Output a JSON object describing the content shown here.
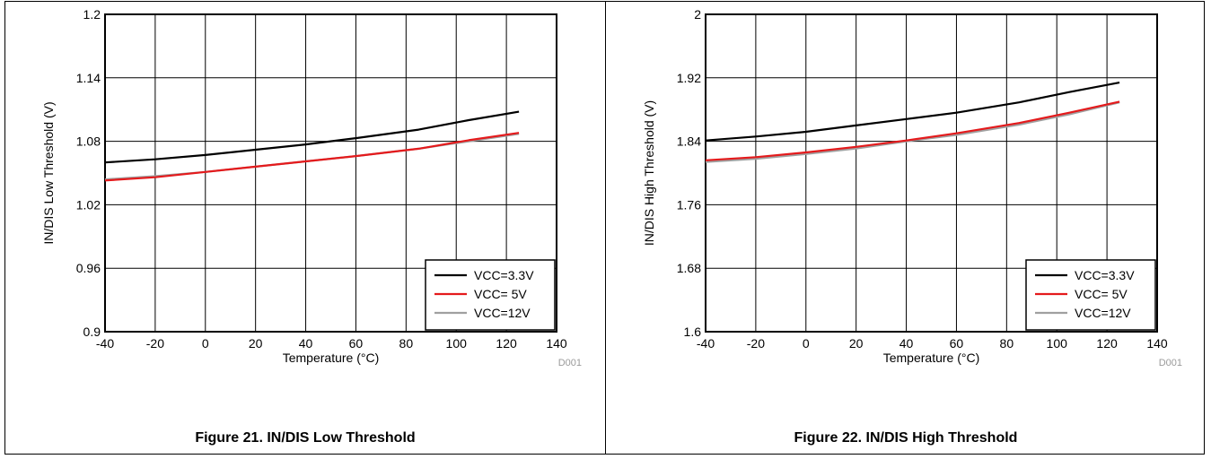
{
  "figures": [
    {
      "caption": "Figure 21. IN/DIS Low Threshold",
      "code": "D001"
    },
    {
      "caption": "Figure 22. IN/DIS High Threshold",
      "code": "D001"
    }
  ],
  "chart_data": [
    {
      "type": "line",
      "xlabel": "Temperature (°C)",
      "ylabel": "IN/DIS Low Threshold (V)",
      "xlim": [
        -40,
        140
      ],
      "ylim": [
        0.9,
        1.2
      ],
      "xticks": [
        -40,
        -20,
        0,
        20,
        40,
        60,
        80,
        100,
        120,
        140
      ],
      "yticks": [
        0.9,
        0.96,
        1.02,
        1.08,
        1.14,
        1.2
      ],
      "ytick_labels": [
        "0.9",
        "0.96",
        "1.02",
        "1.08",
        "1.14",
        "1.2"
      ],
      "grid": true,
      "legend": "bottom-right",
      "x": [
        -40,
        -20,
        0,
        20,
        40,
        60,
        85,
        105,
        125
      ],
      "series": [
        {
          "name": "VCC=3.3V",
          "color": "#000000",
          "values": [
            1.06,
            1.063,
            1.067,
            1.072,
            1.077,
            1.083,
            1.091,
            1.1,
            1.108
          ]
        },
        {
          "name": "VCC= 5V",
          "color": "#e41a1c",
          "values": [
            1.043,
            1.046,
            1.051,
            1.056,
            1.061,
            1.066,
            1.073,
            1.081,
            1.088
          ]
        },
        {
          "name": "VCC=12V",
          "color": "#a0a0a0",
          "values": [
            1.044,
            1.047,
            1.051,
            1.056,
            1.061,
            1.066,
            1.073,
            1.08,
            1.087
          ]
        }
      ]
    },
    {
      "type": "line",
      "xlabel": "Temperature (°C)",
      "ylabel": "IN/DIS High Threshold (V)",
      "xlim": [
        -40,
        140
      ],
      "ylim": [
        1.6,
        2.0
      ],
      "xticks": [
        -40,
        -20,
        0,
        20,
        40,
        60,
        80,
        100,
        120,
        140
      ],
      "yticks": [
        1.6,
        1.68,
        1.76,
        1.84,
        1.92,
        2.0
      ],
      "ytick_labels": [
        "1.6",
        "1.68",
        "1.76",
        "1.84",
        "1.92",
        "2"
      ],
      "grid": true,
      "legend": "bottom-right",
      "x": [
        -40,
        -20,
        0,
        20,
        40,
        60,
        85,
        105,
        125
      ],
      "series": [
        {
          "name": "VCC=3.3V",
          "color": "#000000",
          "values": [
            1.841,
            1.846,
            1.852,
            1.86,
            1.868,
            1.876,
            1.889,
            1.902,
            1.914
          ]
        },
        {
          "name": "VCC= 5V",
          "color": "#e41a1c",
          "values": [
            1.816,
            1.82,
            1.826,
            1.833,
            1.841,
            1.85,
            1.863,
            1.876,
            1.89
          ]
        },
        {
          "name": "VCC=12V",
          "color": "#a0a0a0",
          "values": [
            1.814,
            1.818,
            1.824,
            1.831,
            1.84,
            1.848,
            1.861,
            1.874,
            1.889
          ]
        }
      ]
    }
  ]
}
